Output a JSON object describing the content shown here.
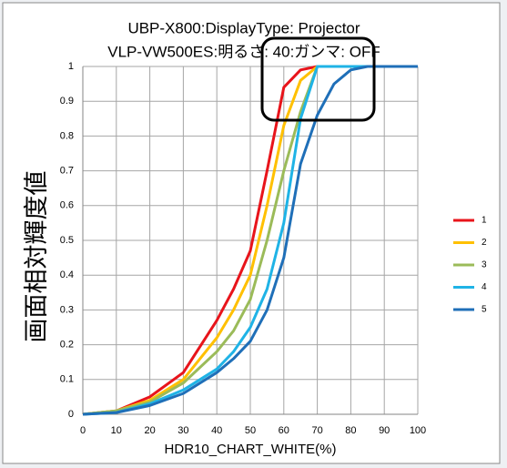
{
  "chart_data": {
    "type": "line",
    "title": [
      "UBP-X800:DisplayType: Projector",
      "VLP-VW500ES:明るさ: 40:ガンマ: OFF"
    ],
    "x_label": "HDR10_CHART_WHITE(%)",
    "y_label": "画面相対輝度値",
    "x": [
      0,
      10,
      20,
      30,
      40,
      45,
      50,
      55,
      60,
      65,
      70,
      75,
      80,
      85,
      90,
      100
    ],
    "series": [
      {
        "name": "1",
        "color": "#e8141b",
        "values": [
          0,
          0.01,
          0.05,
          0.12,
          0.27,
          0.36,
          0.47,
          0.7,
          0.94,
          0.99,
          1,
          1,
          1,
          1,
          1,
          1
        ]
      },
      {
        "name": "2",
        "color": "#ffc000",
        "values": [
          0,
          0.01,
          0.04,
          0.1,
          0.22,
          0.3,
          0.4,
          0.6,
          0.83,
          0.96,
          1,
          1,
          1,
          1,
          1,
          1
        ]
      },
      {
        "name": "3",
        "color": "#9bbb59",
        "values": [
          0,
          0.01,
          0.035,
          0.09,
          0.18,
          0.24,
          0.33,
          0.5,
          0.7,
          0.87,
          1,
          1,
          1,
          1,
          1,
          1
        ]
      },
      {
        "name": "4",
        "color": "#1fb3e6",
        "values": [
          0,
          0.005,
          0.03,
          0.07,
          0.13,
          0.18,
          0.25,
          0.36,
          0.55,
          0.85,
          1,
          1,
          1,
          1,
          1,
          1
        ]
      },
      {
        "name": "5",
        "color": "#1f6fb8",
        "values": [
          0,
          0.005,
          0.025,
          0.06,
          0.12,
          0.16,
          0.21,
          0.3,
          0.45,
          0.72,
          0.86,
          0.95,
          0.99,
          1,
          1,
          1
        ]
      }
    ],
    "xlim": [
      0,
      100
    ],
    "xticks": [
      0,
      10,
      20,
      30,
      40,
      50,
      60,
      70,
      80,
      90,
      100
    ],
    "ylim": [
      0,
      1
    ],
    "yticks": [
      0,
      0.1,
      0.2,
      0.3,
      0.4,
      0.5,
      0.6,
      0.7,
      0.8,
      0.9,
      1
    ],
    "grid": true,
    "legend": "right"
  }
}
